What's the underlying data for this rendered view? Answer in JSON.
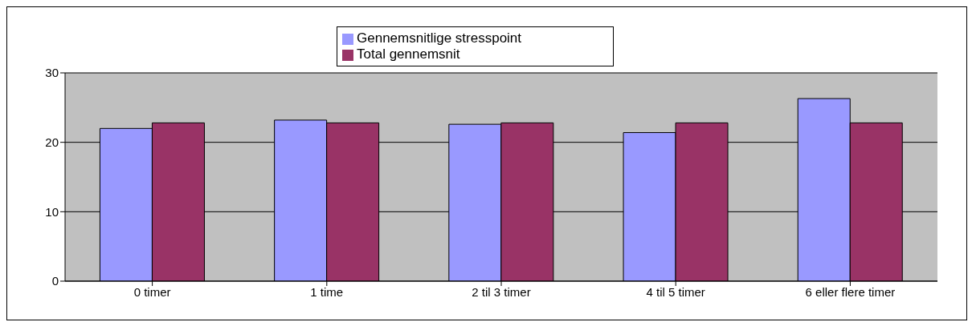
{
  "chart_data": {
    "type": "bar",
    "categories": [
      "0 timer",
      "1 time",
      "2 til 3 timer",
      "4 til 5 timer",
      "6 eller flere timer"
    ],
    "series": [
      {
        "name": "Gennemsnitlige stresspoint",
        "color": "#9999ff",
        "values": [
          22.0,
          23.2,
          22.6,
          21.4,
          26.3
        ]
      },
      {
        "name": "Total gennemsnit",
        "color": "#993366",
        "values": [
          22.8,
          22.8,
          22.8,
          22.8,
          22.8
        ]
      }
    ],
    "ylim": [
      0,
      30
    ],
    "yticks": [
      0,
      10,
      20,
      30
    ],
    "grid": "y",
    "legend": "top"
  }
}
